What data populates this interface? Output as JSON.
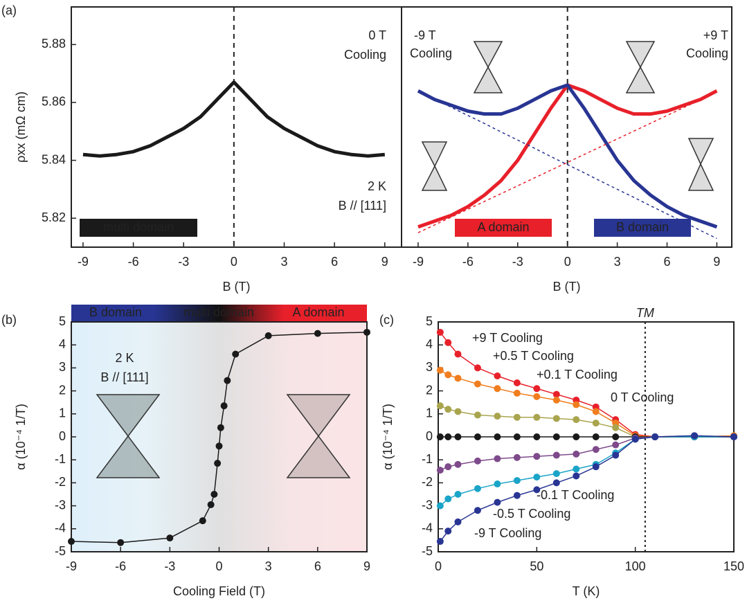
{
  "chart_data": [
    {
      "type": "line",
      "panel": "(a)",
      "ylabel": "ρxx (mΩ cm)",
      "xlabel": "B (T)",
      "xlim": [
        -9.7,
        10
      ],
      "ylim": [
        5.81,
        5.893
      ],
      "xticks": [
        -9,
        -6,
        -3,
        0,
        3,
        6,
        9
      ],
      "yticks": [
        5.82,
        5.84,
        5.86,
        5.88
      ],
      "vlines": [
        0
      ],
      "x": [
        -9,
        -8,
        -7,
        -6,
        -5,
        -4,
        -3,
        -2,
        -1,
        0,
        1,
        2,
        3,
        4,
        5,
        6,
        7,
        8,
        9
      ],
      "series": [
        {
          "color": "#1a1a1a",
          "dashed": false,
          "values": [
            5.842,
            5.8415,
            5.842,
            5.843,
            5.845,
            5.848,
            5.851,
            5.855,
            5.861,
            5.867,
            5.861,
            5.855,
            5.851,
            5.848,
            5.845,
            5.843,
            5.842,
            5.8415,
            5.842
          ]
        }
      ],
      "annotations": [
        {
          "text": "0 T",
          "color": "#222"
        },
        {
          "text": "Cooling",
          "color": "#222"
        },
        {
          "text": "2 K",
          "color": "#222"
        },
        {
          "text": "B // [111]",
          "color": "#222"
        }
      ],
      "boxes": [
        {
          "text": "multi domain",
          "color": "#1a1a1a"
        }
      ]
    },
    {
      "type": "line",
      "xlabel": "B (T)",
      "xlim": [
        -10,
        9.9
      ],
      "ylim": [
        5.81,
        5.893
      ],
      "xticks": [
        -9,
        -6,
        -3,
        0,
        3,
        6,
        9
      ],
      "vlines": [
        0
      ],
      "x": [
        -9,
        -8,
        -7,
        -6,
        -5,
        -4,
        -3,
        -2,
        -1,
        0,
        1,
        2,
        3,
        4,
        5,
        6,
        7,
        8,
        9
      ],
      "series": [
        {
          "color": "#e8202a",
          "dashed": false,
          "values": [
            5.817,
            5.819,
            5.821,
            5.824,
            5.828,
            5.833,
            5.84,
            5.849,
            5.858,
            5.866,
            5.864,
            5.861,
            5.858,
            5.856,
            5.856,
            5.857,
            5.859,
            5.861,
            5.864
          ]
        },
        {
          "color": "#283593",
          "dashed": false,
          "values": [
            5.864,
            5.861,
            5.859,
            5.857,
            5.856,
            5.856,
            5.858,
            5.861,
            5.864,
            5.866,
            5.858,
            5.849,
            5.84,
            5.833,
            5.828,
            5.824,
            5.821,
            5.819,
            5.817
          ]
        },
        {
          "color": "#e8202a",
          "dashed": true,
          "values": [
            5.815,
            5.8177,
            5.8204,
            5.8231,
            5.8258,
            5.8285,
            5.8312,
            5.8339,
            5.8366,
            5.8393,
            5.842,
            5.8447,
            5.8474,
            5.8501,
            5.8528,
            5.8555,
            5.8582,
            5.8609,
            5.8636
          ]
        },
        {
          "color": "#283593",
          "dashed": true,
          "values": [
            5.864,
            5.8612,
            5.8583,
            5.8555,
            5.8527,
            5.8498,
            5.847,
            5.8442,
            5.8413,
            5.8385,
            5.8357,
            5.8328,
            5.83,
            5.8272,
            5.8243,
            5.8215,
            5.8187,
            5.8158,
            5.813
          ]
        }
      ],
      "annotations": [
        {
          "text": "-9 T",
          "color": "#283593"
        },
        {
          "text": "Cooling",
          "color": "#283593"
        },
        {
          "text": "+9 T",
          "color": "#e8202a"
        },
        {
          "text": "Cooling",
          "color": "#e8202a"
        }
      ],
      "boxes": [
        {
          "text": "A domain",
          "color": "#e8202a"
        },
        {
          "text": "B domain",
          "color": "#283593"
        }
      ]
    },
    {
      "type": "line",
      "panel": "(b)",
      "markers": true,
      "ylabel": "α (10⁻⁴ 1/T)",
      "xlabel": "Cooling Field (T)",
      "xlim": [
        -9,
        9
      ],
      "ylim": [
        -5,
        5
      ],
      "xticks": [
        -9,
        -6,
        -3,
        0,
        3,
        6,
        9
      ],
      "yticks": [
        -5,
        -4,
        -3,
        -2,
        -1,
        0,
        1,
        2,
        3,
        4,
        5
      ],
      "x": [
        -9,
        -6,
        -3,
        -1,
        -0.5,
        -0.3,
        -0.1,
        0,
        0.1,
        0.3,
        0.5,
        1,
        3,
        6,
        9
      ],
      "series": [
        {
          "color": "#1a1a1a",
          "dashed": false,
          "values": [
            -4.55,
            -4.6,
            -4.4,
            -3.65,
            -2.95,
            -2.5,
            -1.15,
            -0.4,
            0.4,
            1.35,
            2.45,
            3.6,
            4.4,
            4.5,
            4.55
          ]
        }
      ],
      "banner": [
        "B domain",
        "multi domain",
        "A domain"
      ],
      "annotations": [
        {
          "text": "2 K",
          "color": "#222"
        },
        {
          "text": "B // [111]",
          "color": "#222"
        }
      ]
    },
    {
      "type": "line",
      "panel": "(c)",
      "markers": true,
      "ylabel": "α (10⁻⁴ 1/T)",
      "xlabel": "T (K)",
      "xlim": [
        0,
        150
      ],
      "ylim": [
        -5,
        5
      ],
      "xticks": [
        0,
        50,
        100,
        150
      ],
      "yticks": [
        -5,
        -4,
        -3,
        -2,
        -1,
        0,
        1,
        2,
        3,
        4,
        5
      ],
      "vlines": [
        {
          "value": 105,
          "label": "TM"
        }
      ],
      "x": [
        1,
        5,
        10,
        20,
        30,
        40,
        50,
        60,
        70,
        80,
        90,
        100,
        110,
        130,
        150
      ],
      "series": [
        {
          "name": "+9 T Cooling",
          "color": "#e8202a",
          "dashed": false,
          "values": [
            4.55,
            4.1,
            3.6,
            3.0,
            2.65,
            2.35,
            2.1,
            1.85,
            1.6,
            1.3,
            0.75,
            0.1,
            0,
            0,
            0
          ]
        },
        {
          "name": "+0.5 T Cooling",
          "color": "#f07d1e",
          "dashed": false,
          "values": [
            2.9,
            2.7,
            2.55,
            2.3,
            2.1,
            1.9,
            1.75,
            1.6,
            1.4,
            1.1,
            0.6,
            0.05,
            0,
            0,
            0.05
          ]
        },
        {
          "name": "+0.1 T Cooling",
          "color": "#a9a54e",
          "dashed": false,
          "values": [
            1.35,
            1.2,
            1.1,
            0.95,
            0.9,
            0.85,
            0.85,
            0.8,
            0.75,
            0.6,
            0.4,
            0,
            0,
            0,
            0
          ]
        },
        {
          "name": "0 T Cooling",
          "color": "#1a1a1a",
          "dashed": false,
          "values": [
            0,
            0,
            0,
            0,
            0,
            0,
            0,
            0,
            0,
            0,
            0,
            0,
            0,
            0,
            0
          ]
        },
        {
          "name": "-0.1 T Cooling",
          "color": "#7e4a8b",
          "dashed": false,
          "values": [
            -1.45,
            -1.3,
            -1.2,
            -1.05,
            -0.95,
            -0.9,
            -0.85,
            -0.8,
            -0.75,
            -0.55,
            -0.35,
            -0.05,
            0,
            0.05,
            0
          ]
        },
        {
          "name": "-0.5 T Cooling",
          "color": "#1aa4c8",
          "dashed": false,
          "values": [
            -3.0,
            -2.7,
            -2.5,
            -2.25,
            -2.05,
            -1.9,
            -1.75,
            -1.6,
            -1.4,
            -1.2,
            -0.7,
            -0.1,
            0,
            0,
            0
          ]
        },
        {
          "name": "-9 T Cooling",
          "color": "#283593",
          "dashed": false,
          "values": [
            -4.55,
            -4.1,
            -3.7,
            -3.2,
            -2.85,
            -2.55,
            -2.3,
            -2.0,
            -1.7,
            -1.3,
            -0.8,
            -0.1,
            0,
            0.05,
            0
          ]
        }
      ]
    }
  ]
}
